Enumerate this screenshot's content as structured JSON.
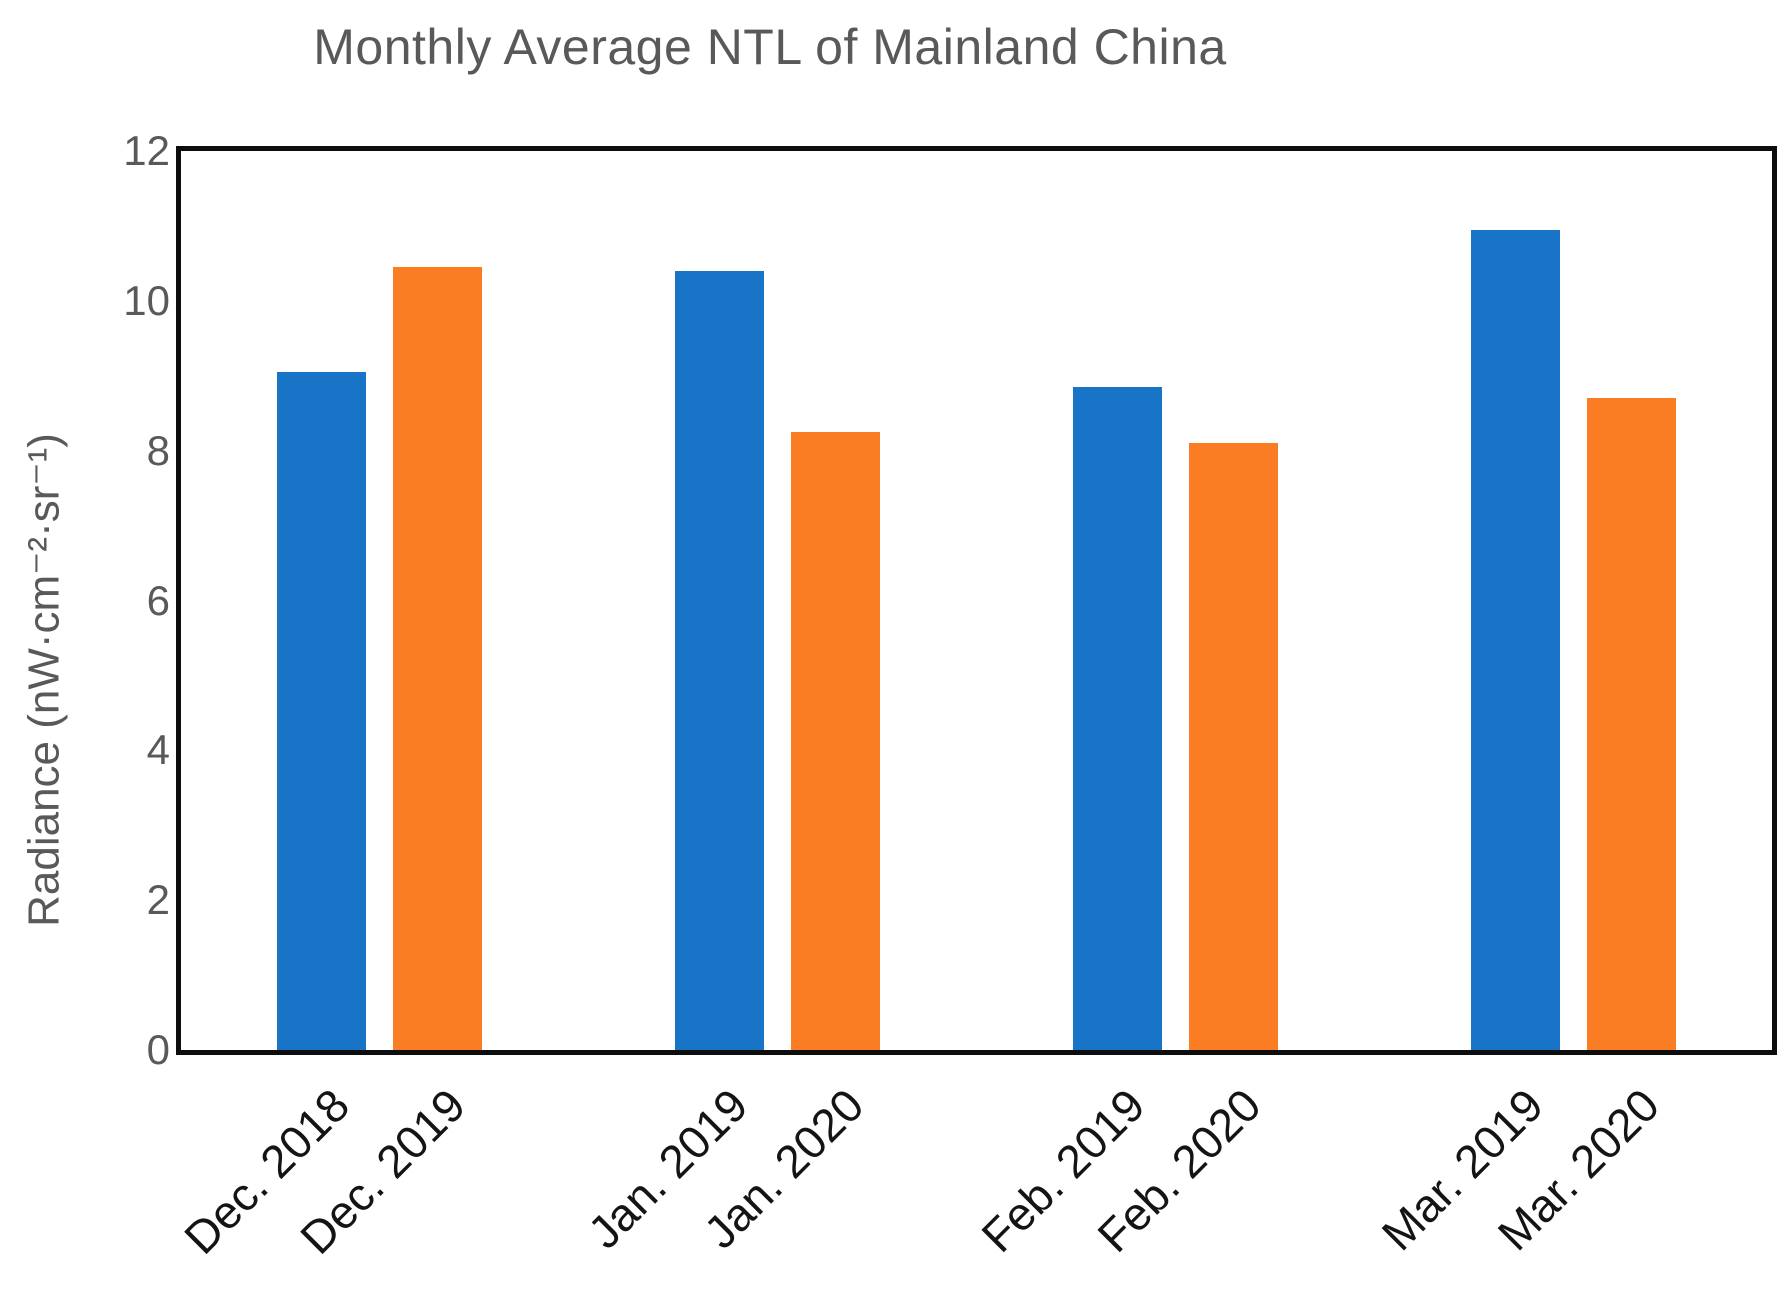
{
  "title": "Monthly Average NTL of Mainland China",
  "y_axis": {
    "label": "Radiance (nW·cm⁻²·sr⁻¹)",
    "tick_labels": [
      "0",
      "2",
      "4",
      "6",
      "8",
      "10",
      "12"
    ]
  },
  "colors": {
    "bar_blue": "#1874C6",
    "bar_orange": "#FB7D23",
    "title_text": "#595959",
    "tick_text": "#595959",
    "x_label_text": "#141414",
    "frame": "#0d0d0d"
  },
  "chart_data": {
    "type": "bar",
    "title": "Monthly Average NTL of Mainland China",
    "xlabel": "",
    "ylabel": "Radiance (nW·cm⁻²·sr⁻¹)",
    "ylim": [
      0,
      12
    ],
    "yticks": [
      0,
      2,
      4,
      6,
      8,
      10,
      12
    ],
    "grid": false,
    "legend": "none",
    "grouping": "pairs-of-two",
    "categories": [
      "Dec. 2018",
      "Dec. 2019",
      "Jan. 2019",
      "Jan. 2020",
      "Feb. 2019",
      "Feb. 2020",
      "Mar. 2019",
      "Mar. 2020"
    ],
    "values": [
      9.05,
      10.45,
      10.4,
      8.25,
      8.85,
      8.1,
      10.95,
      8.7
    ],
    "bar_colors": [
      "#1874C6",
      "#FB7D23",
      "#1874C6",
      "#FB7D23",
      "#1874C6",
      "#FB7D23",
      "#1874C6",
      "#FB7D23"
    ]
  }
}
